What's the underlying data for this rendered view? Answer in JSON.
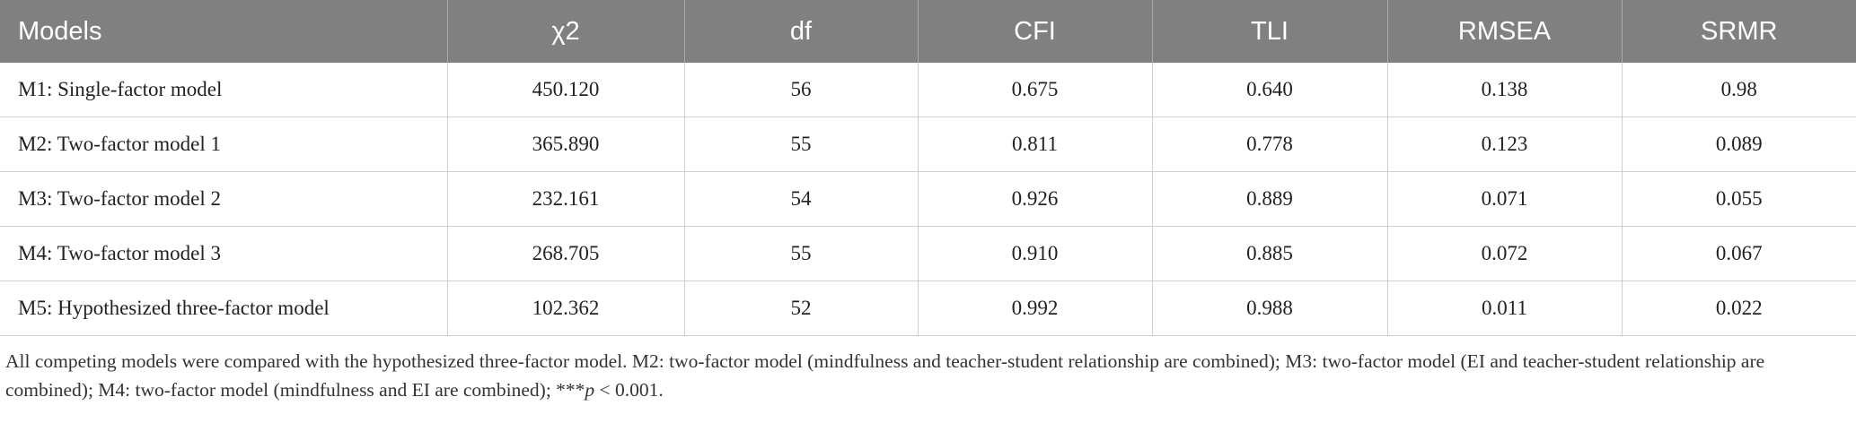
{
  "table": {
    "header": [
      "Models",
      "χ2",
      "df",
      "CFI",
      "TLI",
      "RMSEA",
      "SRMR"
    ],
    "rows": [
      [
        "M1: Single-factor model",
        "450.120",
        "56",
        "0.675",
        "0.640",
        "0.138",
        "0.98"
      ],
      [
        "M2: Two-factor model 1",
        "365.890",
        "55",
        "0.811",
        "0.778",
        "0.123",
        "0.089"
      ],
      [
        "M3: Two-factor model 2",
        "232.161",
        "54",
        "0.926",
        "0.889",
        "0.071",
        "0.055"
      ],
      [
        "M4: Two-factor model 3",
        "268.705",
        "55",
        "0.910",
        "0.885",
        "0.072",
        "0.067"
      ],
      [
        "M5: Hypothesized three-factor model",
        "102.362",
        "52",
        "0.992",
        "0.988",
        "0.011",
        "0.022"
      ]
    ]
  },
  "footnote": [
    "All competing models were compared with the hypothesized three-factor model. M2: two-factor model (mindfulness and teacher-student relationship are combined); M3: two-factor model (EI and teacher-student relationship are combined); M4: two-factor model (mindfulness and EI are combined); ***",
    "p",
    " < 0.001."
  ]
}
